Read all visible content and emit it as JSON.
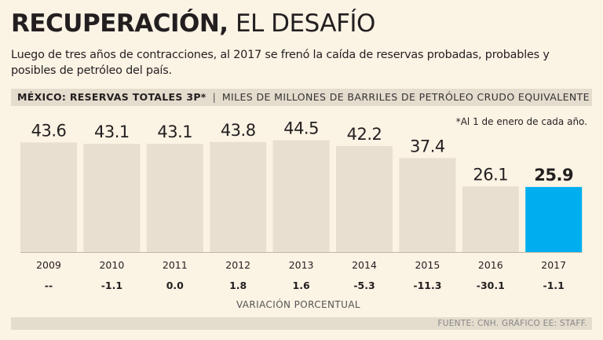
{
  "title_bold": "RECUPERACIÓN,",
  "title_light": "EL DESAFÍO",
  "subtitle": "Luego de tres años de contracciones, al 2017 se frenó la caída de reservas probadas, probables y posibles de petróleo del país.",
  "header": {
    "region": "MÉXICO: RESERVAS TOTALES 3P*",
    "separator": "|",
    "units": "MILES DE MILLONES DE BARRILES DE PETRÓLEO CRUDO EQUIVALENTE"
  },
  "footnote": "*Al 1 de enero de cada año.",
  "variation_label": "VARIACIÓN PORCENTUAL",
  "source": "FUENTE: CNH. GRÁFICO EE: STAFF.",
  "colors": {
    "bar": "#e8dfd0",
    "highlight": "#00aeef",
    "background": "#fbf3e4"
  },
  "chart_data": {
    "type": "bar",
    "categories": [
      "2009",
      "2010",
      "2011",
      "2012",
      "2013",
      "2014",
      "2015",
      "2016",
      "2017"
    ],
    "values": [
      43.6,
      43.1,
      43.1,
      43.8,
      44.5,
      42.2,
      37.4,
      26.1,
      25.9
    ],
    "value_labels": [
      "43.6",
      "43.1",
      "43.1",
      "43.8",
      "44.5",
      "42.2",
      "37.4",
      "26.1",
      "25.9"
    ],
    "variation": [
      "--",
      "-1.1",
      "0.0",
      "1.8",
      "1.6",
      "-5.3",
      "-11.3",
      "-30.1",
      "-1.1"
    ],
    "highlight_index": 8,
    "title": "MÉXICO: RESERVAS TOTALES 3P*",
    "ylabel": "MILES DE MILLONES DE BARRILES DE PETRÓLEO CRUDO EQUIVALENTE",
    "xlabel": "",
    "grid": false,
    "legend": "none"
  }
}
